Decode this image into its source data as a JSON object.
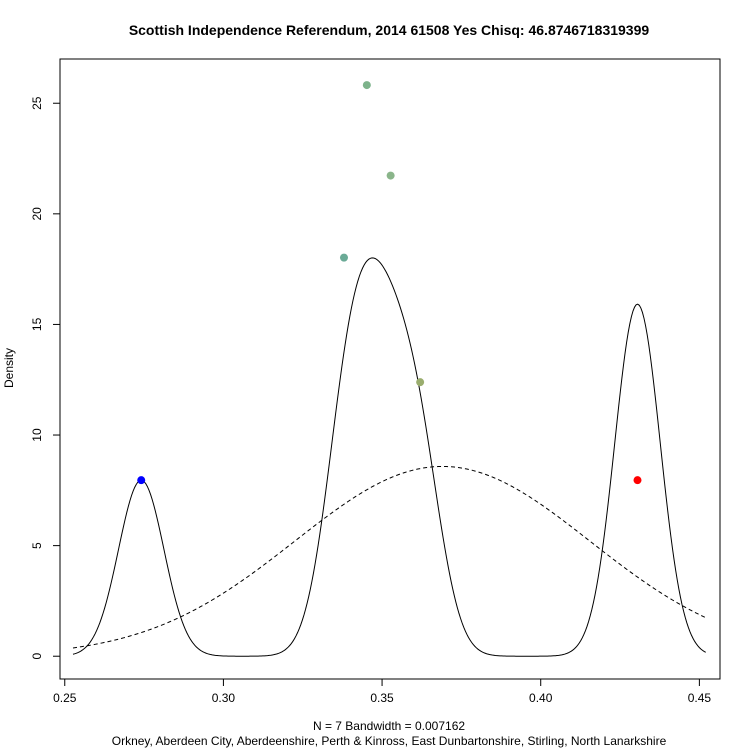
{
  "chart_data": {
    "type": "line",
    "title": "Scottish Independence Referendum, 2014 61508 Yes Chisq: 46.8746718319399",
    "xlabel": "N = 7   Bandwidth = 0.007162",
    "ylabel": "Density",
    "subtitle": "Orkney, Aberdeen City, Aberdeenshire, Perth & Kinross, East Dunbartonshire, Stirling, North Lanarkshire",
    "xlim": [
      0.2485,
      0.4565
    ],
    "ylim": [
      -1.03,
      27.0
    ],
    "x_ticks": [
      0.25,
      0.3,
      0.35,
      0.4,
      0.45
    ],
    "x_tick_labels": [
      "0.25",
      "0.30",
      "0.35",
      "0.40",
      "0.45"
    ],
    "y_ticks": [
      0,
      5,
      10,
      15,
      20,
      25
    ],
    "y_tick_labels": [
      "0",
      "5",
      "10",
      "15",
      "20",
      "25"
    ],
    "grid": false,
    "kde": {
      "bandwidth": 0.007162,
      "data": [
        0.2741,
        0.338,
        0.3452,
        0.3527,
        0.362,
        0.4305,
        0.4305
      ],
      "x_range": [
        0.2526,
        0.452
      ]
    },
    "normal_curve": {
      "mean": 0.369,
      "sd": 0.0465,
      "x_range": [
        0.2526,
        0.452
      ]
    },
    "points": [
      {
        "x": 0.2741,
        "y": 7.96,
        "color": "#0000ff"
      },
      {
        "x": 0.338,
        "y": 18.02,
        "color": "#6aaa96"
      },
      {
        "x": 0.3452,
        "y": 25.82,
        "color": "#7db38b"
      },
      {
        "x": 0.3527,
        "y": 21.73,
        "color": "#8ab58a"
      },
      {
        "x": 0.362,
        "y": 12.39,
        "color": "#9aad6e"
      },
      {
        "x": 0.4305,
        "y": 7.96,
        "color": "#ff0000"
      }
    ]
  }
}
